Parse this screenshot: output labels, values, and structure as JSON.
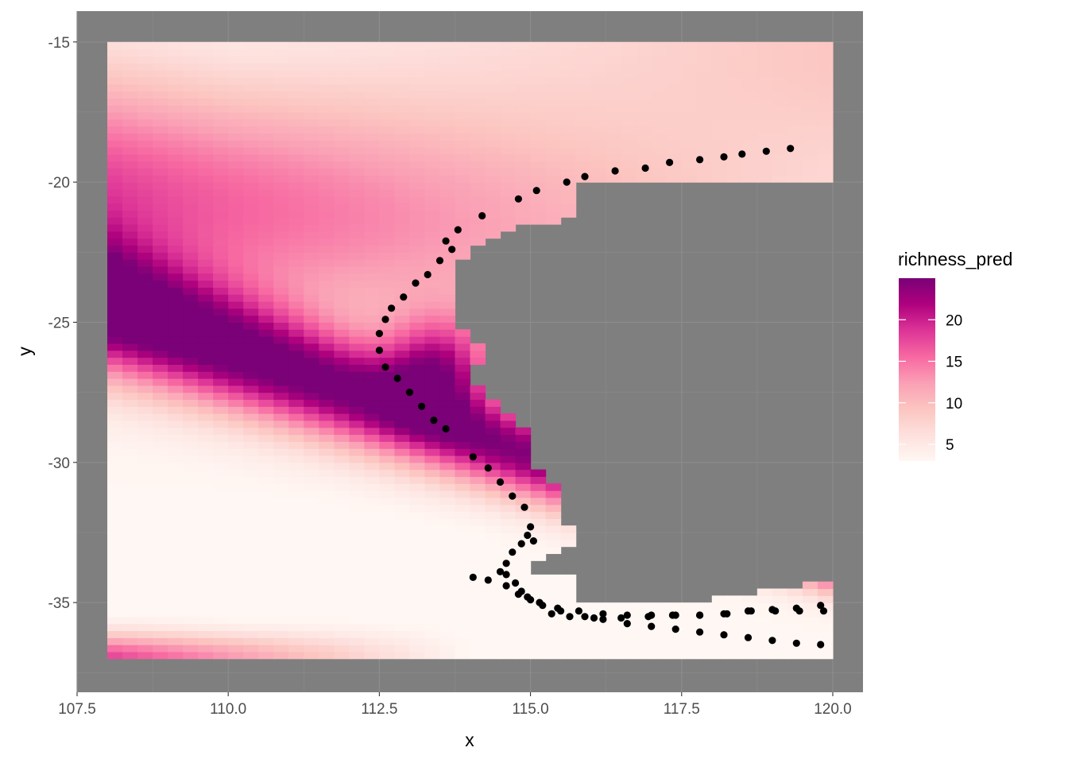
{
  "chart_data": {
    "type": "heatmap",
    "title": "",
    "xlabel": "x",
    "ylabel": "y",
    "xlim": [
      107.5,
      120.5
    ],
    "ylim": [
      -38.2,
      -13.9
    ],
    "x_ticks": [
      "107.5",
      "110.0",
      "112.5",
      "115.0",
      "117.5",
      "120.0"
    ],
    "y_ticks": [
      "-15",
      "-20",
      "-25",
      "-30",
      "-35"
    ],
    "grid": "on",
    "panel_background": "#7f7f7f",
    "grid_color": "#8c8c8c",
    "raster": {
      "x_range": [
        108.0,
        120.0
      ],
      "y_range": [
        -37.0,
        -15.0
      ],
      "cell_size": 0.25,
      "fill_variable": "richness_pred",
      "pattern": "band of maximum richness (~24) running from the western edge near y=-25 east-south-east to x~113.5, y~-28; secondary high at x~113.5, y~-26.5; richness ~3 near y=-33 to -35 in the west; ~18 at the south-west corner; ~5-8 at the east/north-east",
      "masked_land": "Western Australia coastline region (x > ~113.5) shown as panel gray"
    },
    "legend": {
      "title": "richness_pred",
      "placement": "right",
      "limits": [
        3,
        25
      ],
      "ticks": [
        "5",
        "10",
        "15",
        "20"
      ],
      "colors": [
        "#fff7f3",
        "#fde0dd",
        "#fcc5c0",
        "#fa9fb5",
        "#f768a1",
        "#dd3497",
        "#ae017e",
        "#7a0177"
      ]
    },
    "points": {
      "color": "#000000",
      "x": [
        119.3,
        118.9,
        118.5,
        118.2,
        117.8,
        117.3,
        116.9,
        116.4,
        115.9,
        115.6,
        115.1,
        114.8,
        114.2,
        113.8,
        113.6,
        113.7,
        113.5,
        113.3,
        113.1,
        112.9,
        112.7,
        112.6,
        112.5,
        112.5,
        112.6,
        112.8,
        113.0,
        113.2,
        113.4,
        113.6,
        114.05,
        114.3,
        114.5,
        114.7,
        114.9,
        115.0,
        115.05,
        114.95,
        114.85,
        114.7,
        114.6,
        114.5,
        114.6,
        114.75,
        114.85,
        114.95,
        115.15,
        115.45,
        115.8,
        116.2,
        116.6,
        117.0,
        117.4,
        117.8,
        118.2,
        118.6,
        119.0,
        119.4,
        119.8,
        114.05,
        114.3,
        114.6,
        114.8,
        115.0,
        115.2,
        115.5,
        115.9,
        116.2,
        116.6,
        117.0,
        117.4,
        117.8,
        118.2,
        118.6,
        119.0,
        119.4,
        119.8,
        115.35,
        115.65,
        116.05,
        116.5,
        116.95,
        117.35,
        117.8,
        118.25,
        118.65,
        119.05,
        119.45,
        119.85
      ],
      "y": [
        -18.8,
        -18.9,
        -19.0,
        -19.1,
        -19.2,
        -19.3,
        -19.5,
        -19.6,
        -19.8,
        -20.0,
        -20.3,
        -20.6,
        -21.2,
        -21.7,
        -22.1,
        -22.4,
        -22.8,
        -23.3,
        -23.6,
        -24.1,
        -24.5,
        -24.9,
        -25.4,
        -26.0,
        -26.6,
        -27.0,
        -27.5,
        -28.0,
        -28.5,
        -28.8,
        -29.8,
        -30.2,
        -30.7,
        -31.2,
        -31.6,
        -32.3,
        -32.8,
        -32.6,
        -32.9,
        -33.2,
        -33.6,
        -33.9,
        -34.0,
        -34.3,
        -34.6,
        -34.8,
        -35.0,
        -35.2,
        -35.3,
        -35.4,
        -35.45,
        -35.45,
        -35.45,
        -35.45,
        -35.4,
        -35.3,
        -35.25,
        -35.2,
        -35.1,
        -34.1,
        -34.2,
        -34.4,
        -34.7,
        -34.9,
        -35.1,
        -35.3,
        -35.5,
        -35.6,
        -35.75,
        -35.85,
        -35.95,
        -36.05,
        -36.15,
        -36.25,
        -36.35,
        -36.45,
        -36.5,
        -35.4,
        -35.5,
        -35.55,
        -35.55,
        -35.5,
        -35.45,
        -35.45,
        -35.4,
        -35.3,
        -35.3,
        -35.3,
        -35.3
      ]
    }
  }
}
